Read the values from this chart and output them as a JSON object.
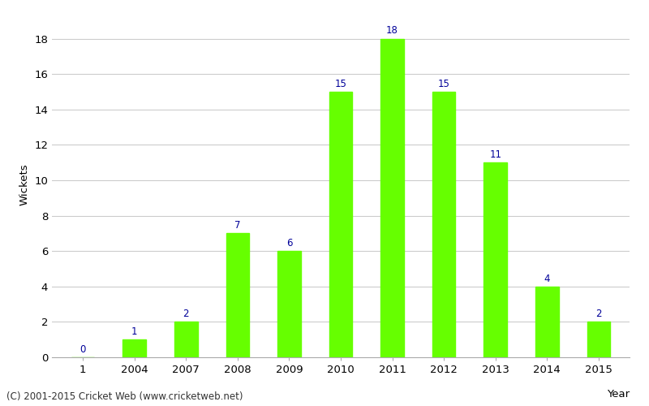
{
  "categories": [
    "1",
    "2004",
    "2007",
    "2008",
    "2009",
    "2010",
    "2011",
    "2012",
    "2013",
    "2014",
    "2015"
  ],
  "values": [
    0,
    1,
    2,
    7,
    6,
    15,
    18,
    15,
    11,
    4,
    2
  ],
  "bar_color": "#66ff00",
  "bar_edge_color": "#66ff00",
  "label_color": "#000099",
  "ylabel": "Wickets",
  "xlabel": "Year",
  "ylim": [
    0,
    19.5
  ],
  "yticks": [
    0,
    2,
    4,
    6,
    8,
    10,
    12,
    14,
    16,
    18
  ],
  "background_color": "#ffffff",
  "grid_color": "#cccccc",
  "footer": "(C) 2001-2015 Cricket Web (www.cricketweb.net)",
  "label_fontsize": 8.5,
  "axis_fontsize": 9.5,
  "footer_fontsize": 8.5,
  "bar_width": 0.45
}
